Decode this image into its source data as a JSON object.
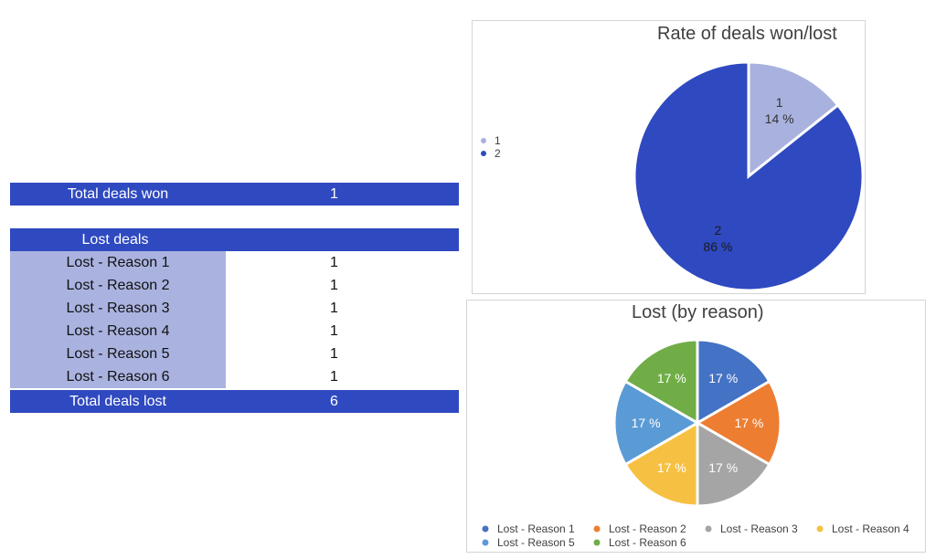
{
  "summary": {
    "won_label": "Total deals won",
    "won_value": "1",
    "lost_header": "Lost deals",
    "reasons": [
      {
        "label": "Lost - Reason 1",
        "value": "1"
      },
      {
        "label": "Lost - Reason 2",
        "value": "1"
      },
      {
        "label": "Lost - Reason 3",
        "value": "1"
      },
      {
        "label": "Lost - Reason 4",
        "value": "1"
      },
      {
        "label": "Lost - Reason 5",
        "value": "1"
      },
      {
        "label": "Lost - Reason 6",
        "value": "1"
      }
    ],
    "lost_total_label": "Total deals lost",
    "lost_total_value": "6"
  },
  "colors": {
    "header_blue": "#2f49c0",
    "reason_fill": "#aab3e0"
  },
  "chart_data": [
    {
      "type": "pie",
      "title": "Rate of deals won/lost",
      "legend": "left",
      "categories": [
        "1",
        "2"
      ],
      "values": [
        1,
        6
      ],
      "percent_labels": [
        "14 %",
        "86 %"
      ],
      "colors": [
        "#a9b1de",
        "#2f49c0"
      ]
    },
    {
      "type": "pie",
      "title": "Lost (by reason)",
      "legend": "bottom",
      "categories": [
        "Lost - Reason 1",
        "Lost - Reason 2",
        "Lost - Reason 3",
        "Lost - Reason 4",
        "Lost - Reason 5",
        "Lost - Reason 6"
      ],
      "values": [
        1,
        1,
        1,
        1,
        1,
        1
      ],
      "percent_labels": [
        "17 %",
        "17 %",
        "17 %",
        "17 %",
        "17 %",
        "17 %"
      ],
      "colors": [
        "#4472c4",
        "#ed7d31",
        "#a5a5a5",
        "#f6c142",
        "#5b9bd5",
        "#70ad47"
      ]
    }
  ]
}
